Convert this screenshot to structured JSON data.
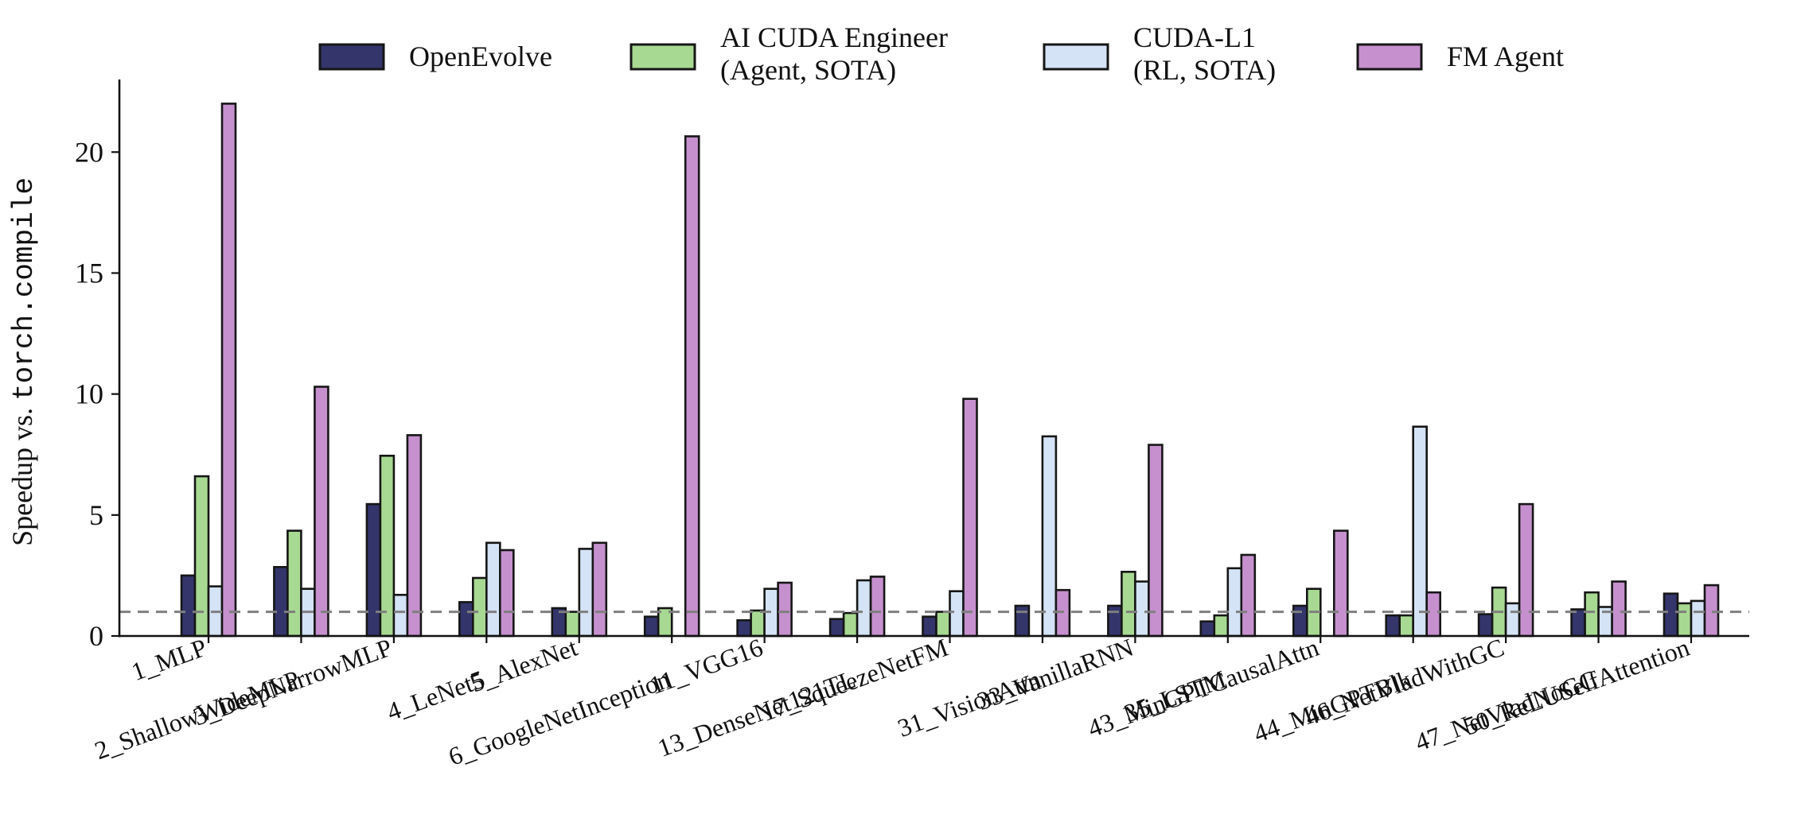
{
  "colors": {
    "openevolve": "#33356b",
    "ai_cuda": "#a8d992",
    "cuda_l1": "#d4e3f5",
    "fm_agent": "#c690ce",
    "edge": "#161616",
    "baseline": "#7f7f7f"
  },
  "chart_data": {
    "type": "bar",
    "title": "",
    "ylabel_prefix": "Speedup vs. ",
    "ylabel_code": "torch.compile",
    "xlabel": "",
    "ylim": [
      0,
      23
    ],
    "yticks": [
      0,
      5,
      10,
      15,
      20
    ],
    "baseline": 1,
    "grid": false,
    "legend_position": "top",
    "categories": [
      "1_MLP",
      "2_ShallowWideMLP",
      "3_DeepNarrowMLP",
      "4_LeNet5",
      "5_AlexNet",
      "6_GoogleNetInception",
      "11_VGG16",
      "13_DenseNet121TL",
      "17_SqueezeNetFM",
      "31_VisionAttn",
      "33_VanillaRNN",
      "35_LSTM",
      "43_MinGPTCausalAttn",
      "44_MinGPTBlk",
      "46_NetVladWithGC",
      "47_NetVladNoGC",
      "50_ReLUSelfAttention"
    ],
    "series": [
      {
        "key": "openevolve",
        "name": "OpenEvolve",
        "name_lines": [
          "OpenEvolve"
        ],
        "values": [
          2.5,
          2.85,
          5.45,
          1.4,
          1.15,
          0.8,
          0.65,
          0.7,
          0.8,
          1.25,
          1.25,
          0.6,
          1.25,
          0.85,
          0.9,
          1.1,
          1.75
        ]
      },
      {
        "key": "ai_cuda",
        "name": "AI CUDA Engineer (Agent, SOTA)",
        "name_lines": [
          "AI CUDA Engineer",
          "(Agent, SOTA)"
        ],
        "values": [
          6.6,
          4.35,
          7.45,
          2.4,
          1.0,
          1.15,
          1.05,
          0.95,
          1.0,
          null,
          2.65,
          0.85,
          1.95,
          0.85,
          2.0,
          1.8,
          1.35
        ]
      },
      {
        "key": "cuda_l1",
        "name": "CUDA-L1 (RL, SOTA)",
        "name_lines": [
          "CUDA-L1",
          "(RL, SOTA)"
        ],
        "values": [
          2.05,
          1.95,
          1.7,
          3.85,
          3.6,
          null,
          1.95,
          2.3,
          1.85,
          8.25,
          2.25,
          2.8,
          null,
          8.65,
          1.35,
          1.2,
          1.45
        ]
      },
      {
        "key": "fm_agent",
        "name": "FM Agent",
        "name_lines": [
          "FM Agent"
        ],
        "values": [
          22.0,
          10.3,
          8.3,
          3.55,
          3.85,
          20.65,
          2.2,
          2.45,
          9.8,
          1.9,
          7.9,
          3.35,
          4.35,
          1.8,
          5.45,
          2.25,
          2.1
        ]
      }
    ]
  }
}
